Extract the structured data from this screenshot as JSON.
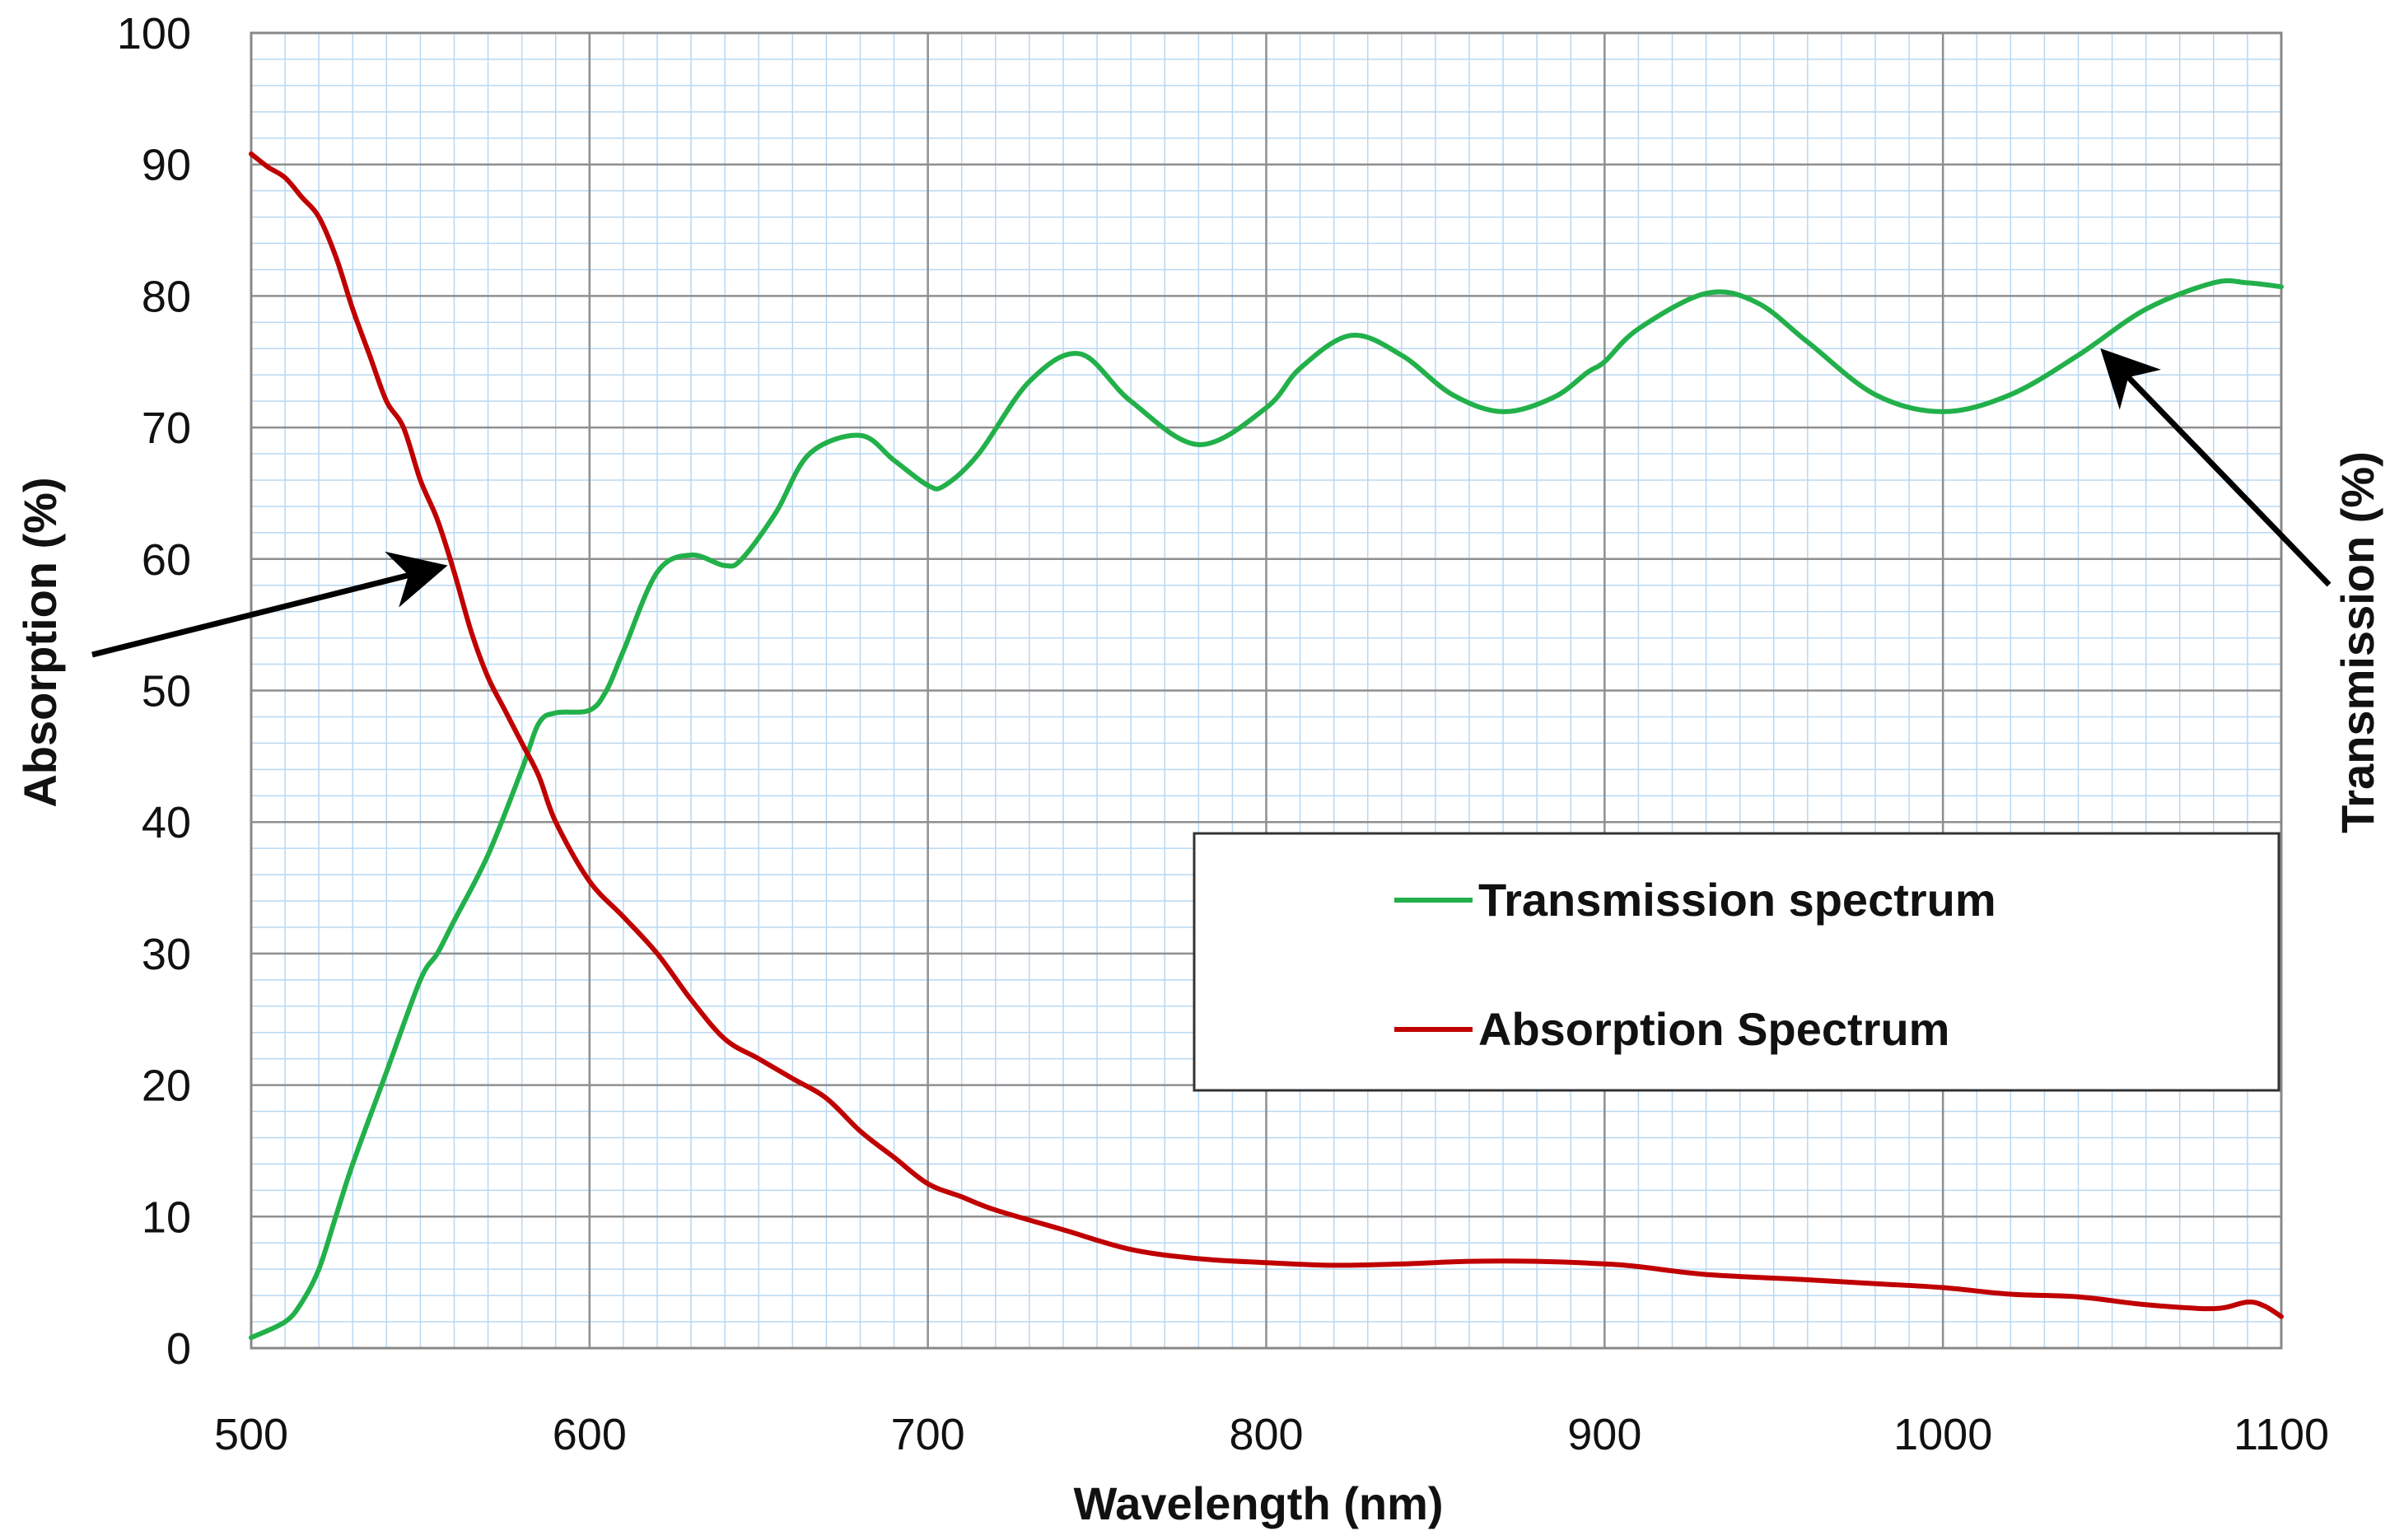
{
  "chart_data": {
    "type": "line",
    "title": "",
    "xlabel": "Wavelength (nm)",
    "ylabel": "Absorption (%)",
    "ylabel_right": "Transmission (%)",
    "xlim": [
      500,
      1100
    ],
    "ylim": [
      0,
      100
    ],
    "x_ticks": [
      500,
      600,
      700,
      800,
      900,
      1000,
      1100
    ],
    "y_ticks": [
      0,
      10,
      20,
      30,
      40,
      50,
      60,
      70,
      80,
      90,
      100
    ],
    "x_tick_labels": [
      "500",
      "600",
      "700",
      "800",
      "900",
      "1000",
      "1100"
    ],
    "y_tick_labels": [
      "0",
      "10",
      "20",
      "30",
      "40",
      "50",
      "60",
      "70",
      "80",
      "90",
      "100"
    ],
    "grid": true,
    "legend_position": "center-right",
    "series": [
      {
        "name": "Transmission spectrum",
        "color": "#22b04a",
        "x": [
          500,
          510,
          515,
          520,
          525,
          530,
          540,
          550,
          555,
          560,
          570,
          580,
          585,
          590,
          600,
          605,
          610,
          620,
          630,
          640,
          645,
          655,
          665,
          680,
          690,
          700,
          705,
          715,
          730,
          745,
          760,
          780,
          800,
          810,
          825,
          840,
          855,
          870,
          885,
          895,
          900,
          910,
          930,
          945,
          960,
          980,
          1000,
          1020,
          1040,
          1060,
          1080,
          1090,
          1100
        ],
        "values": [
          0.8,
          2,
          3.5,
          6,
          10,
          14,
          21,
          28,
          30,
          32.5,
          37.5,
          44,
          47.5,
          48.3,
          48.5,
          50,
          53,
          59,
          60.3,
          59.5,
          60,
          63.5,
          68,
          69.4,
          67.5,
          65.6,
          65.6,
          68,
          73.5,
          75.6,
          72,
          68.7,
          71.5,
          74.5,
          77,
          75.5,
          72.5,
          71.2,
          72.3,
          74.2,
          75,
          77.5,
          80.2,
          79.5,
          76.5,
          72.5,
          71.2,
          72.5,
          75.5,
          79,
          81,
          81,
          80.7
        ]
      },
      {
        "name": "Absorption Spectrum",
        "color": "#c00000",
        "x": [
          500,
          505,
          510,
          515,
          520,
          525,
          530,
          535,
          540,
          545,
          550,
          555,
          560,
          565,
          570,
          575,
          580,
          585,
          590,
          600,
          610,
          620,
          630,
          640,
          650,
          660,
          670,
          680,
          690,
          700,
          710,
          720,
          740,
          760,
          780,
          800,
          820,
          840,
          860,
          880,
          900,
          910,
          930,
          960,
          980,
          1000,
          1020,
          1040,
          1060,
          1080,
          1090,
          1095,
          1100
        ],
        "values": [
          90.8,
          89.8,
          89,
          87.5,
          86,
          83,
          79,
          75.5,
          72,
          70,
          66,
          63,
          59,
          54.5,
          51,
          48.5,
          46,
          43.5,
          40,
          35.5,
          32.8,
          30,
          26.5,
          23.5,
          22,
          20.5,
          19,
          16.5,
          14.5,
          12.5,
          11.5,
          10.5,
          9,
          7.5,
          6.8,
          6.5,
          6.3,
          6.4,
          6.6,
          6.6,
          6.4,
          6.2,
          5.6,
          5.2,
          4.9,
          4.6,
          4.1,
          3.9,
          3.3,
          3,
          3.5,
          3.2,
          2.4
        ]
      }
    ],
    "annotations": [
      {
        "text": "",
        "target": "Absorption Spectrum",
        "arrow_from_side": "left"
      },
      {
        "text": "",
        "target": "Transmission spectrum",
        "arrow_from_side": "right"
      }
    ]
  }
}
